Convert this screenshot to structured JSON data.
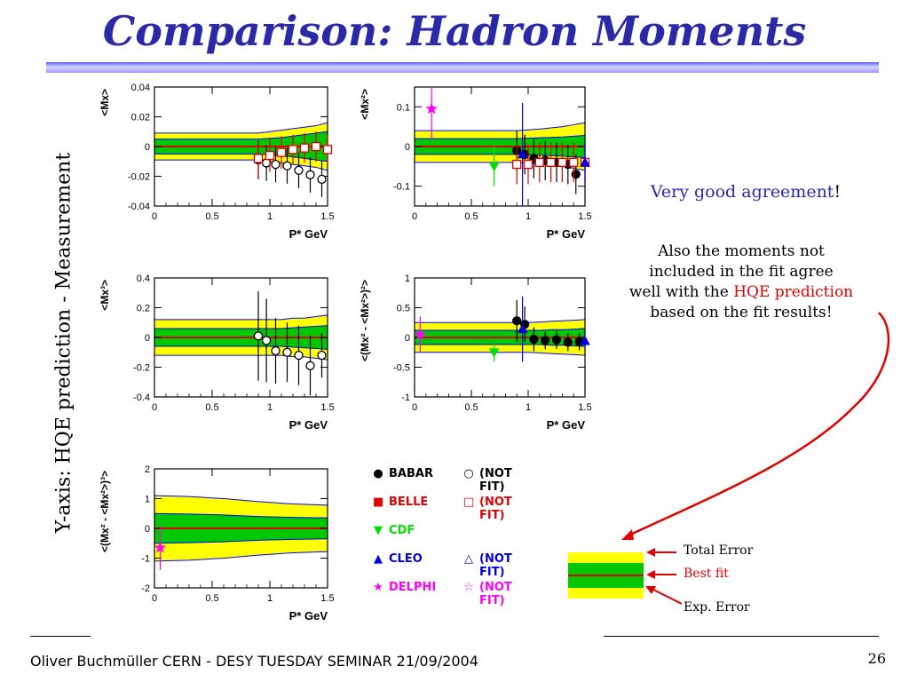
{
  "slide": {
    "title": "Comparison: Hadron Moments",
    "y_axis_note": "Y-axis: HQE prediction - Measurement",
    "right_text": {
      "very_good": "Very good agreement",
      "very_good_suffix": "!",
      "also_line1": "Also the moments not",
      "also_line2": "included in the fit agree",
      "also_line3_prefix": "well with the ",
      "also_line3_red": "HQE prediction",
      "also_line4": "based on the fit results!"
    },
    "band_key": {
      "total_error": "Total Error",
      "best_fit": "Best fit",
      "exp_error": "Exp. Error"
    },
    "footer": "Oliver Buchmüller CERN - DESY TUESDAY SEMINAR 21/09/2004",
    "page_number": "26"
  },
  "colors": {
    "title": "#2a2aa8",
    "band_outer": "#ffff00",
    "band_inner": "#00c800",
    "band_edge": "#0000ff",
    "central_line": "#e00000",
    "babar": "#000000",
    "belle": "#e00000",
    "cdf": "#00e000",
    "cleo": "#0000e0",
    "delphi": "#ff00ff",
    "arrow": "#e00000"
  },
  "legend": [
    {
      "name": "BABAR",
      "nf": "(NOT FIT)",
      "fit_symbol": "●",
      "nf_symbol": "○",
      "color": "#000000"
    },
    {
      "name": "BELLE",
      "nf": "(NOT FIT)",
      "fit_symbol": "■",
      "nf_symbol": "□",
      "color": "#e00000"
    },
    {
      "name": "CDF",
      "nf": "",
      "fit_symbol": "▼",
      "nf_symbol": "",
      "color": "#00e000"
    },
    {
      "name": "CLEO",
      "nf": "(NOT FIT)",
      "fit_symbol": "▲",
      "nf_symbol": "△",
      "color": "#0000e0"
    },
    {
      "name": "DELPHI",
      "nf": "(NOT FIT)",
      "fit_symbol": "★",
      "nf_symbol": "☆",
      "color": "#ff00ff"
    }
  ],
  "chart_data": [
    {
      "type": "scatter",
      "ylabel": "<Mx>",
      "xlabel": "P* GeV",
      "xlim": [
        0,
        1.5
      ],
      "ylim": [
        -0.04,
        0.04
      ],
      "xticks": [
        0,
        0.5,
        1,
        1.5
      ],
      "xtick_labels": [
        "0",
        "0.5",
        "1",
        "1.5"
      ],
      "yticks": [
        -0.04,
        -0.02,
        0,
        0.02,
        0.04
      ],
      "ytick_labels": [
        "-0.04",
        "-0.02",
        "0",
        "0.02",
        "0.04"
      ],
      "band": {
        "x": [
          0,
          0.9,
          1.0,
          1.1,
          1.2,
          1.3,
          1.4,
          1.5
        ],
        "inner_half": [
          0.005,
          0.005,
          0.0055,
          0.006,
          0.007,
          0.008,
          0.009,
          0.01
        ],
        "outer_half": [
          0.009,
          0.009,
          0.01,
          0.011,
          0.012,
          0.013,
          0.014,
          0.016
        ]
      },
      "series": [
        {
          "name": "BABAR",
          "symbol": "circle",
          "filled": false,
          "x": [
            0.9,
            0.97,
            1.05,
            1.15,
            1.25,
            1.35,
            1.45
          ],
          "y": [
            -0.009,
            -0.011,
            -0.012,
            -0.013,
            -0.016,
            -0.019,
            -0.022
          ],
          "err": [
            0.013,
            0.012,
            0.012,
            0.012,
            0.012,
            0.012,
            0.012
          ]
        },
        {
          "name": "BELLE",
          "symbol": "square",
          "filled": false,
          "x": [
            0.9,
            1.0,
            1.1,
            1.2,
            1.3,
            1.4,
            1.5
          ],
          "y": [
            -0.008,
            -0.006,
            -0.004,
            -0.002,
            -0.001,
            0.0,
            -0.002
          ],
          "err": [
            0.012,
            0.011,
            0.011,
            0.01,
            0.01,
            0.01,
            0.01
          ]
        }
      ]
    },
    {
      "type": "scatter",
      "ylabel": "<Mx²>",
      "xlabel": "P* GeV",
      "xlim": [
        0,
        1.5
      ],
      "ylim": [
        -0.15,
        0.15
      ],
      "xticks": [
        0,
        0.5,
        1,
        1.5
      ],
      "xtick_labels": [
        "0",
        "0.5",
        "1",
        "1.5"
      ],
      "yticks": [
        -0.1,
        0,
        0.1
      ],
      "ytick_labels": [
        "-0.1",
        "0",
        "0.1"
      ],
      "band": {
        "x": [
          0,
          0.5,
          0.9,
          1.0,
          1.1,
          1.2,
          1.3,
          1.4,
          1.5
        ],
        "inner_half": [
          0.02,
          0.02,
          0.02,
          0.021,
          0.022,
          0.023,
          0.024,
          0.026,
          0.028
        ],
        "outer_half": [
          0.04,
          0.04,
          0.04,
          0.042,
          0.044,
          0.047,
          0.05,
          0.055,
          0.06
        ]
      },
      "series": [
        {
          "name": "BABAR",
          "symbol": "circle",
          "filled": true,
          "x": [
            0.9,
            0.97,
            1.05,
            1.15,
            1.25,
            1.35,
            1.42
          ],
          "y": [
            -0.01,
            -0.02,
            -0.03,
            -0.035,
            -0.04,
            -0.045,
            -0.07
          ],
          "err": [
            0.05,
            0.05,
            0.05,
            0.05,
            0.05,
            0.05,
            0.05
          ]
        },
        {
          "name": "BELLE",
          "symbol": "square",
          "filled": false,
          "x": [
            0.9,
            1.0,
            1.1,
            1.2,
            1.3,
            1.4,
            1.5
          ],
          "y": [
            -0.045,
            -0.045,
            -0.04,
            -0.04,
            -0.04,
            -0.04,
            -0.04
          ],
          "err": [
            0.05,
            0.05,
            0.05,
            0.05,
            0.05,
            0.05,
            0.05
          ]
        },
        {
          "name": "CDF",
          "symbol": "triangle-down",
          "filled": true,
          "x": [
            0.7
          ],
          "y": [
            -0.05
          ],
          "err": [
            0.05
          ]
        },
        {
          "name": "CLEO",
          "symbol": "triangle-up",
          "filled": true,
          "x": [
            0.95,
            1.5
          ],
          "y": [
            -0.02,
            -0.04
          ],
          "err": [
            0.13,
            0.05
          ]
        },
        {
          "name": "DELPHI",
          "symbol": "star",
          "filled": true,
          "x": [
            0.15
          ],
          "y": [
            0.095
          ],
          "err": [
            0.08
          ]
        }
      ]
    },
    {
      "type": "scatter",
      "ylabel": "<Mx³>",
      "xlabel": "P* GeV",
      "xlim": [
        0,
        1.5
      ],
      "ylim": [
        -0.4,
        0.4
      ],
      "xticks": [
        0,
        0.5,
        1,
        1.5
      ],
      "xtick_labels": [
        "0",
        "0.5",
        "1",
        "1.5"
      ],
      "yticks": [
        -0.4,
        -0.2,
        0,
        0.2,
        0.4
      ],
      "ytick_labels": [
        "-0.4",
        "-0.2",
        "0",
        "0.2",
        "0.4"
      ],
      "band": {
        "x": [
          0,
          0.9,
          1.0,
          1.1,
          1.2,
          1.3,
          1.4,
          1.5
        ],
        "inner_half": [
          0.06,
          0.06,
          0.06,
          0.06,
          0.065,
          0.07,
          0.075,
          0.08
        ],
        "outer_half": [
          0.12,
          0.12,
          0.12,
          0.12,
          0.13,
          0.13,
          0.14,
          0.15
        ]
      },
      "series": [
        {
          "name": "BABAR",
          "symbol": "circle",
          "filled": false,
          "x": [
            0.9,
            0.97,
            1.05,
            1.15,
            1.25,
            1.35,
            1.45
          ],
          "y": [
            0.01,
            -0.02,
            -0.09,
            -0.1,
            -0.12,
            -0.19,
            -0.12
          ],
          "err": [
            0.3,
            0.28,
            0.22,
            0.2,
            0.2,
            0.2,
            0.15
          ]
        }
      ]
    },
    {
      "type": "scatter",
      "ylabel": "<(Mx² - <Mx²>)²>",
      "xlabel": "P* GeV",
      "xlim": [
        0,
        1.5
      ],
      "ylim": [
        -1,
        1
      ],
      "xticks": [
        0,
        0.5,
        1,
        1.5
      ],
      "xtick_labels": [
        "0",
        "0.5",
        "1",
        "1.5"
      ],
      "yticks": [
        -1,
        -0.5,
        0,
        0.5,
        1
      ],
      "ytick_labels": [
        "-1",
        "-0.5",
        "0",
        "0.5",
        "1"
      ],
      "band": {
        "x": [
          0,
          0.9,
          1.0,
          1.1,
          1.2,
          1.3,
          1.4,
          1.5
        ],
        "inner_half": [
          0.12,
          0.12,
          0.12,
          0.12,
          0.13,
          0.13,
          0.14,
          0.15
        ],
        "outer_half": [
          0.25,
          0.25,
          0.25,
          0.26,
          0.27,
          0.28,
          0.29,
          0.3
        ]
      },
      "series": [
        {
          "name": "BABAR",
          "symbol": "circle",
          "filled": true,
          "x": [
            0.9,
            0.97,
            1.05,
            1.15,
            1.25,
            1.35,
            1.45
          ],
          "y": [
            0.28,
            0.22,
            -0.03,
            -0.05,
            -0.04,
            -0.08,
            -0.07
          ],
          "err": [
            0.35,
            0.3,
            0.2,
            0.15,
            0.15,
            0.15,
            0.15
          ]
        },
        {
          "name": "CDF",
          "symbol": "triangle-down",
          "filled": true,
          "x": [
            0.7
          ],
          "y": [
            -0.25
          ],
          "err": [
            0.15
          ]
        },
        {
          "name": "CLEO",
          "symbol": "triangle-up",
          "filled": true,
          "x": [
            0.95,
            1.5
          ],
          "y": [
            0.14,
            -0.06
          ],
          "err": [
            0.55,
            0.15
          ]
        },
        {
          "name": "DELPHI",
          "symbol": "star",
          "filled": true,
          "x": [
            0.05
          ],
          "y": [
            0.05
          ],
          "err": [
            0.3
          ]
        }
      ]
    },
    {
      "type": "scatter",
      "ylabel": "<(Mx² - <Mx²>)³>",
      "xlabel": "P* GeV",
      "xlim": [
        0,
        1.5
      ],
      "ylim": [
        -2,
        2
      ],
      "xticks": [
        0,
        0.5,
        1,
        1.5
      ],
      "xtick_labels": [
        "0",
        "0.5",
        "1",
        "1.5"
      ],
      "yticks": [
        -2,
        -1,
        0,
        1,
        2
      ],
      "ytick_labels": [
        "-2",
        "-1",
        "0",
        "1",
        "2"
      ],
      "band": {
        "x": [
          0,
          0.3,
          0.6,
          0.9,
          1.2,
          1.5
        ],
        "inner_half": [
          0.5,
          0.48,
          0.45,
          0.4,
          0.37,
          0.35
        ],
        "outer_half": [
          1.1,
          1.07,
          1.0,
          0.9,
          0.82,
          0.78
        ]
      },
      "series": [
        {
          "name": "DELPHI",
          "symbol": "star",
          "filled": true,
          "x": [
            0.05
          ],
          "y": [
            -0.65
          ],
          "err": [
            0.75
          ]
        }
      ]
    }
  ]
}
